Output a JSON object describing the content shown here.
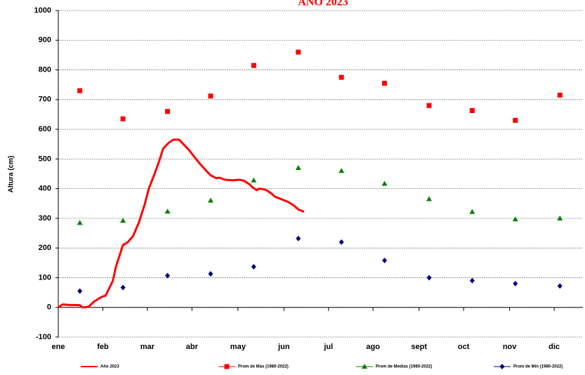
{
  "chart_data": {
    "type": "line",
    "title": "AÑO 2023",
    "y_label": "Altura (cm)",
    "xlim": [
      0,
      365
    ],
    "ylim": [
      -100,
      1000
    ],
    "xticks": [
      {
        "value": 0,
        "label": "ene"
      },
      {
        "value": 31,
        "label": "feb"
      },
      {
        "value": 62,
        "label": "mar"
      },
      {
        "value": 93,
        "label": "abr"
      },
      {
        "value": 125,
        "label": "may"
      },
      {
        "value": 157,
        "label": "jun"
      },
      {
        "value": 188,
        "label": "jul"
      },
      {
        "value": 219,
        "label": "ago"
      },
      {
        "value": 251,
        "label": "sept"
      },
      {
        "value": 282,
        "label": "oct"
      },
      {
        "value": 314,
        "label": "nov"
      },
      {
        "value": 345,
        "label": "dic"
      }
    ],
    "yticks": [
      -100,
      0,
      100,
      200,
      300,
      400,
      500,
      600,
      700,
      800,
      900,
      1000
    ],
    "grid": true,
    "legend": "bottom",
    "series": [
      {
        "name": "Año 2023",
        "color": "#ff0000",
        "marker": "none",
        "x": [
          0,
          3,
          8,
          12,
          15,
          17,
          21,
          25,
          30,
          33,
          35,
          38,
          40,
          43,
          45,
          48,
          52,
          56,
          60,
          63,
          67,
          70,
          73,
          77,
          80,
          84,
          87,
          91,
          95,
          98,
          103,
          106,
          110,
          112,
          116,
          121,
          126,
          129,
          133,
          135,
          138,
          140,
          144,
          148,
          151,
          155,
          160,
          164,
          167,
          171
        ],
        "values": [
          0,
          10,
          8,
          8,
          7,
          0,
          2,
          20,
          35,
          40,
          60,
          90,
          135,
          180,
          210,
          218,
          240,
          285,
          345,
          400,
          450,
          490,
          535,
          555,
          565,
          565,
          550,
          530,
          505,
          487,
          460,
          445,
          435,
          437,
          430,
          428,
          430,
          427,
          415,
          405,
          395,
          400,
          397,
          385,
          372,
          365,
          355,
          343,
          330,
          322
        ]
      },
      {
        "name": "Prom de Máx  (1980-2022)",
        "color": "#ff0000",
        "marker": "square",
        "x": [
          15,
          45,
          76,
          106,
          136,
          167,
          197,
          227,
          258,
          288,
          318,
          349
        ],
        "values": [
          730,
          635,
          660,
          712,
          815,
          860,
          775,
          755,
          680,
          663,
          630,
          715
        ]
      },
      {
        "name": "Prom de Medias  (1980-2022)",
        "color": "#008000",
        "marker": "triangle",
        "x": [
          15,
          45,
          76,
          106,
          136,
          167,
          197,
          227,
          258,
          288,
          318,
          349
        ],
        "values": [
          285,
          292,
          323,
          360,
          428,
          470,
          460,
          417,
          365,
          322,
          297,
          300
        ]
      },
      {
        "name": "Prom de Min  (1980-2022)",
        "color": "#000080",
        "marker": "diamond",
        "x": [
          15,
          45,
          76,
          106,
          136,
          167,
          197,
          227,
          258,
          288,
          318,
          349
        ],
        "values": [
          55,
          67,
          107,
          113,
          137,
          232,
          220,
          158,
          100,
          90,
          80,
          72
        ]
      }
    ]
  }
}
